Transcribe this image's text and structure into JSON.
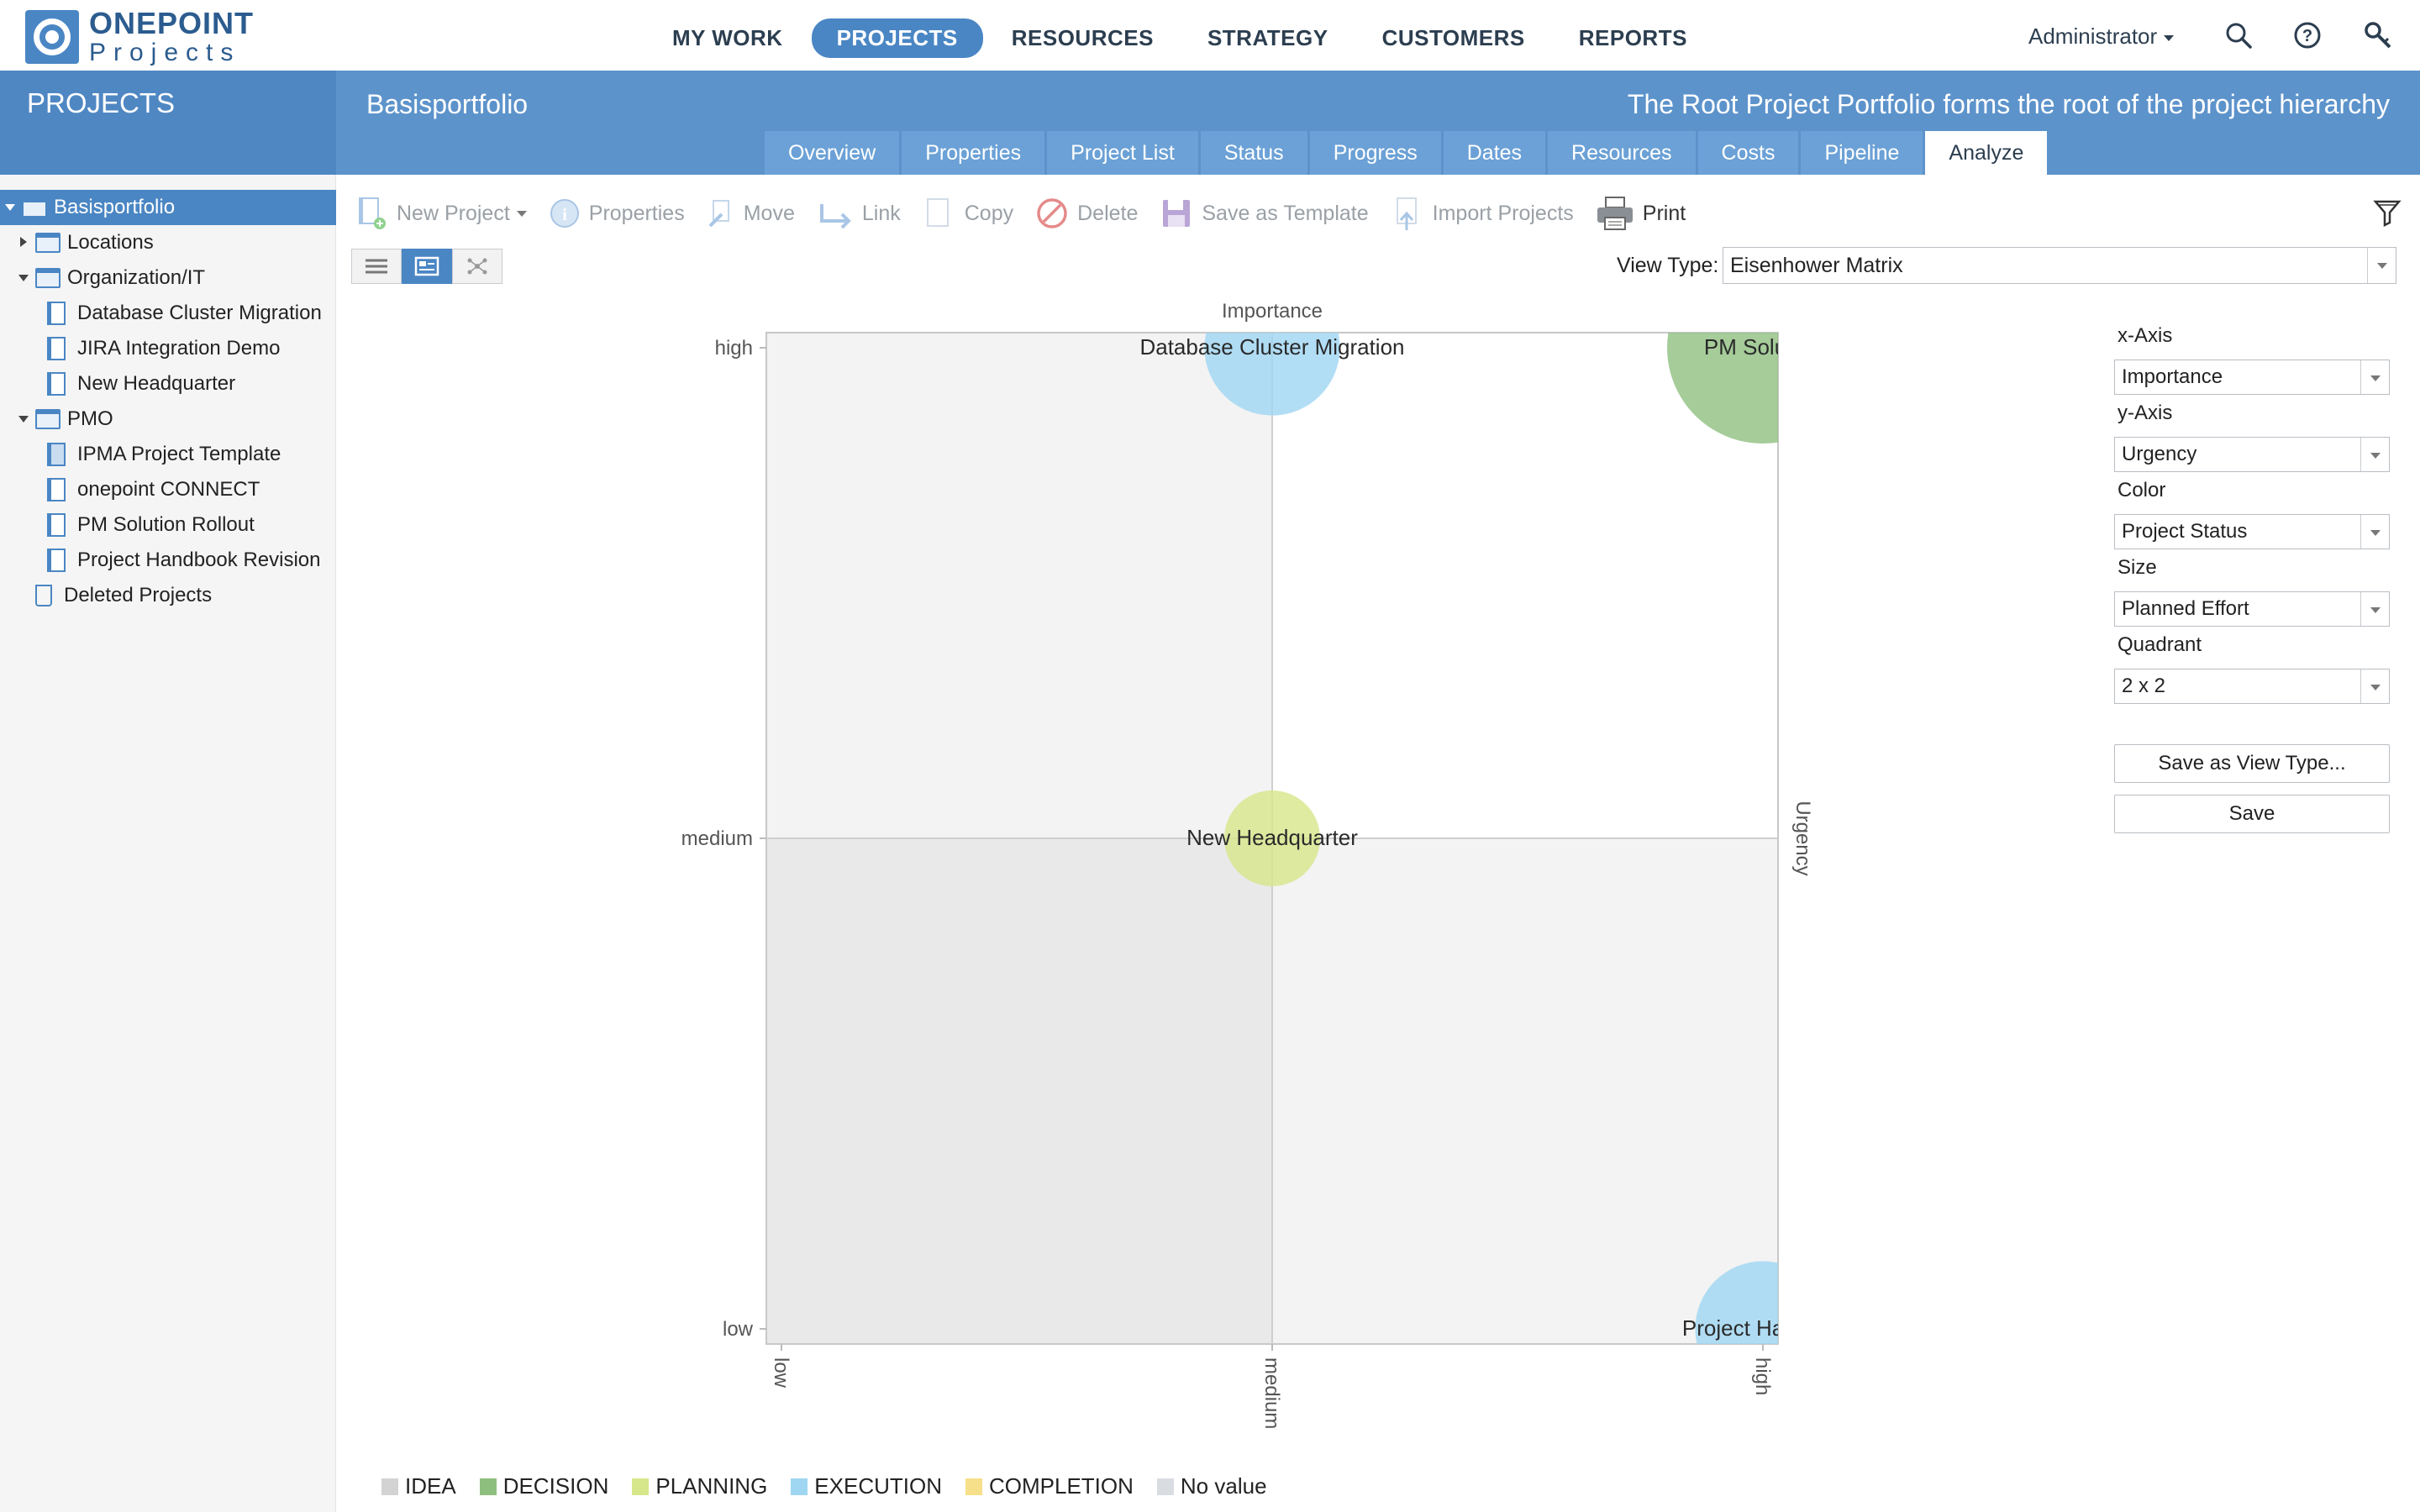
{
  "logo": {
    "line1": "ONEPOINT",
    "line2": "Projects"
  },
  "nav": {
    "items": [
      "MY WORK",
      "PROJECTS",
      "RESOURCES",
      "STRATEGY",
      "CUSTOMERS",
      "REPORTS"
    ],
    "active": "PROJECTS"
  },
  "user": {
    "name": "Administrator"
  },
  "header": {
    "section": "PROJECTS",
    "portfolio": "Basisportfolio",
    "description": "The Root Project Portfolio forms the root of the project hierarchy"
  },
  "tabs": {
    "items": [
      "Overview",
      "Properties",
      "Project List",
      "Status",
      "Progress",
      "Dates",
      "Resources",
      "Costs",
      "Pipeline",
      "Analyze"
    ],
    "active": "Analyze"
  },
  "tree": [
    {
      "label": "Basisportfolio",
      "type": "folder",
      "level": 0,
      "toggle": "down",
      "selected": true
    },
    {
      "label": "Locations",
      "type": "folder",
      "level": 1,
      "toggle": "right"
    },
    {
      "label": "Organization/IT",
      "type": "folder",
      "level": 1,
      "toggle": "down"
    },
    {
      "label": "Database Cluster Migration",
      "type": "project",
      "level": 2
    },
    {
      "label": "JIRA Integration Demo",
      "type": "project",
      "level": 2
    },
    {
      "label": "New Headquarter",
      "type": "project",
      "level": 2
    },
    {
      "label": "PMO",
      "type": "folder",
      "level": 1,
      "toggle": "down"
    },
    {
      "label": "IPMA Project Template",
      "type": "template",
      "level": 2
    },
    {
      "label": "onepoint CONNECT",
      "type": "project",
      "level": 2
    },
    {
      "label": "PM Solution Rollout",
      "type": "project",
      "level": 2
    },
    {
      "label": "Project Handbook Revision",
      "type": "project",
      "level": 2
    },
    {
      "label": "Deleted Projects",
      "type": "trash",
      "level": 1
    }
  ],
  "toolbar": {
    "new_project": "New Project",
    "properties": "Properties",
    "move": "Move",
    "link": "Link",
    "copy": "Copy",
    "delete": "Delete",
    "save_template": "Save as Template",
    "import": "Import Projects",
    "print": "Print"
  },
  "view": {
    "label": "View Type:",
    "value": "Eisenhower Matrix"
  },
  "settings": {
    "x_axis_label": "x-Axis",
    "x_axis": "Importance",
    "y_axis_label": "y-Axis",
    "y_axis": "Urgency",
    "color_label": "Color",
    "color": "Project Status",
    "size_label": "Size",
    "size": "Planned Effort",
    "quadrant_label": "Quadrant",
    "quadrant": "2 x 2",
    "save_view_type": "Save as View Type...",
    "save": "Save"
  },
  "chart_data": {
    "type": "scatter",
    "title": "Importance",
    "xlabel": "Importance",
    "ylabel": "Urgency",
    "x_categories": [
      "low",
      "medium",
      "high"
    ],
    "y_categories": [
      "low",
      "medium",
      "high"
    ],
    "quadrants": "2 x 2",
    "points": [
      {
        "name": "Database Cluster Migration",
        "x": "medium",
        "y": "high",
        "status": "EXECUTION",
        "effort": 2
      },
      {
        "name": "PM Solution",
        "x": "high",
        "y": "high",
        "status": "DECISION",
        "effort": 4
      },
      {
        "name": "New Headquarter",
        "x": "medium",
        "y": "medium",
        "status": "PLANNING",
        "effort": 1
      },
      {
        "name": "Project Handboc",
        "x": "high",
        "y": "low",
        "status": "EXECUTION",
        "effort": 2
      }
    ]
  },
  "legend": [
    {
      "label": "IDEA",
      "color": "#d3d3d3"
    },
    {
      "label": "DECISION",
      "color": "#8fbf7f"
    },
    {
      "label": "PLANNING",
      "color": "#d6e68a"
    },
    {
      "label": "EXECUTION",
      "color": "#9fd6f2"
    },
    {
      "label": "COMPLETION",
      "color": "#f7e08a"
    },
    {
      "label": "No value",
      "color": "#d9dde2"
    }
  ],
  "colors": {
    "accent": "#4a86c4",
    "band": "#5d93cb"
  }
}
